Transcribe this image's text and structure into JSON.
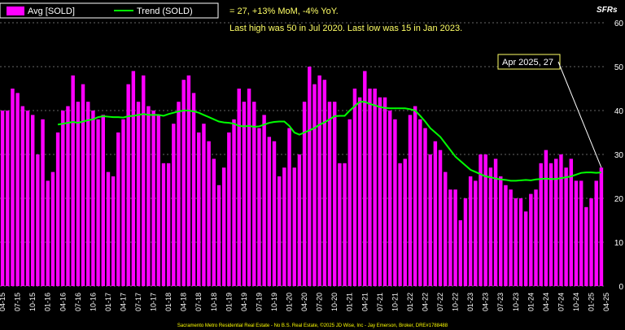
{
  "chart_data": {
    "type": "bar",
    "corner_label": "SFRs",
    "legend": [
      {
        "name": "Avg [SOLD]",
        "color": "#ff00ff"
      },
      {
        "name": "Trend (SOLD)",
        "color": "#00ff00"
      }
    ],
    "annotations": [
      "= 27, +13% MoM, -4% YoY.",
      "Last high was 50 in Jul 2020. Last low was 15 in Jan 2023."
    ],
    "callout": "Apr 2025,  27",
    "footer": "Sacramento Metro Residential Real Estate - No B.S. Real Estate, ©2025 JD Wise, Inc - Jay Emerson, Broker, DRE#1788488",
    "ylim": [
      0,
      60
    ],
    "yticks": [
      0,
      10,
      20,
      30,
      40,
      50,
      60
    ],
    "colors": {
      "bar": "#ff00ff",
      "trend": "#00ff00",
      "grid": "#666666",
      "note": "#ffff66"
    },
    "xticks": [
      "04-15",
      "07-15",
      "10-15",
      "01-16",
      "04-16",
      "07-16",
      "10-16",
      "01-17",
      "04-17",
      "07-17",
      "10-17",
      "01-18",
      "04-18",
      "07-18",
      "10-18",
      "01-19",
      "04-19",
      "07-19",
      "10-19",
      "01-20",
      "04-20",
      "07-20",
      "10-20",
      "01-21",
      "04-21",
      "07-21",
      "10-21",
      "01-22",
      "04-22",
      "07-22",
      "10-22",
      "01-23",
      "04-23",
      "07-23",
      "10-23",
      "01-24",
      "04-24",
      "07-24",
      "10-24",
      "01-25",
      "04-25"
    ],
    "start": "04-15",
    "values": [
      40,
      40,
      45,
      44,
      41,
      40,
      39,
      30,
      38,
      24,
      26,
      35,
      40,
      41,
      48,
      42,
      46,
      42,
      40,
      38,
      39,
      26,
      25,
      35,
      38,
      46,
      49,
      42,
      48,
      41,
      40,
      39,
      28,
      28,
      37,
      42,
      47,
      48,
      44,
      35,
      37,
      33,
      29,
      23,
      27,
      35,
      38,
      45,
      42,
      45,
      42,
      36,
      39,
      34,
      33,
      25,
      27,
      36,
      27,
      30,
      42,
      50,
      46,
      48,
      47,
      42,
      42,
      28,
      28,
      38,
      45,
      43,
      49,
      45,
      45,
      43,
      43,
      40,
      38,
      28,
      29,
      39,
      41,
      38,
      36,
      30,
      33,
      31,
      26,
      22,
      22,
      15,
      20,
      25,
      24,
      30,
      30,
      27,
      29,
      25,
      23,
      22,
      20,
      20,
      17,
      21,
      22,
      28,
      31,
      28,
      29,
      30,
      27,
      29,
      24,
      24,
      18,
      20,
      24,
      27
    ],
    "trend": [
      null,
      null,
      null,
      null,
      null,
      null,
      null,
      null,
      null,
      null,
      null,
      36.8,
      37.0,
      37.2,
      37.4,
      37.2,
      37.5,
      37.8,
      38.0,
      38.5,
      38.7,
      38.6,
      38.5,
      38.5,
      38.4,
      38.7,
      38.8,
      39.0,
      39.2,
      39.0,
      39.0,
      39.0,
      38.8,
      39.2,
      39.5,
      39.8,
      40.0,
      40.0,
      39.8,
      39.5,
      39.0,
      38.5,
      38.0,
      37.5,
      37.3,
      37.2,
      37.0,
      36.5,
      36.4,
      36.5,
      36.3,
      36.4,
      36.8,
      37.2,
      37.4,
      37.5,
      37.5,
      36.5,
      35.0,
      34.5,
      35.0,
      35.5,
      36.0,
      36.8,
      37.3,
      38.0,
      38.7,
      38.8,
      38.8,
      40.0,
      41.0,
      42.0,
      42.0,
      41.5,
      41.2,
      40.8,
      40.6,
      40.5,
      40.5,
      40.5,
      40.5,
      40.3,
      40.0,
      38.8,
      37.5,
      36.0,
      35.0,
      34.0,
      32.5,
      31.0,
      29.5,
      28.5,
      27.5,
      26.5,
      26.0,
      25.5,
      25.0,
      24.8,
      24.5,
      24.3,
      24.2,
      24.0,
      24.0,
      24.1,
      24.2,
      24.1,
      24.3,
      24.4,
      24.5,
      24.4,
      24.4,
      24.6,
      24.8,
      25.0,
      25.4,
      25.8,
      25.9,
      25.9,
      25.8,
      25.9
    ]
  }
}
